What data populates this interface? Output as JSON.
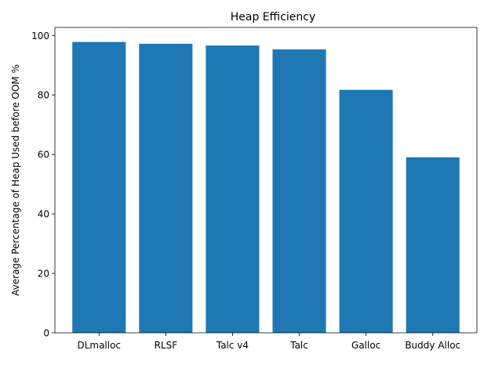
{
  "chart_data": {
    "type": "bar",
    "title": "Heap Efficiency",
    "xlabel": "",
    "ylabel": "Average Percentage of Heap Used before OOM %",
    "categories": [
      "DLmalloc",
      "RLSF",
      "Talc v4",
      "Talc",
      "Galloc",
      "Buddy Alloc"
    ],
    "values": [
      97.8,
      97.2,
      96.6,
      95.3,
      81.7,
      59.0
    ],
    "ylim": [
      0,
      102.7
    ],
    "yticks": [
      0,
      20,
      40,
      60,
      80,
      100
    ],
    "grid": false,
    "bar_color": "#1f77b4"
  }
}
